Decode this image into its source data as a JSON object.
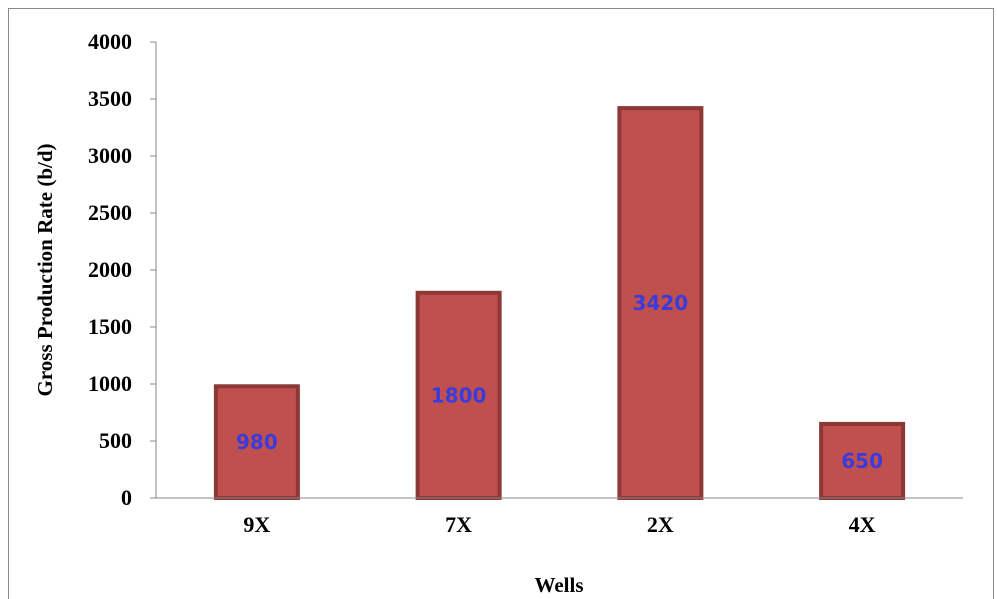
{
  "chart_data": {
    "type": "bar",
    "categories": [
      "9X",
      "7X",
      "2X",
      "4X"
    ],
    "values": [
      980,
      1800,
      3420,
      650
    ],
    "data_labels": [
      "980",
      "1800",
      "3420",
      "650"
    ],
    "xlabel": "Wells",
    "ylabel": "Gross Production Rate (b/d)",
    "ylim": [
      0,
      4000
    ],
    "yticks": [
      "0",
      "500",
      "1000",
      "1500",
      "2000",
      "2500",
      "3000",
      "3500",
      "4000"
    ],
    "grid": false,
    "legend": "none",
    "colors": {
      "bar_fill": "#c0504d",
      "bar_border": "#8c3836",
      "data_label": "#3b3bdc",
      "axis": "#8a8a8a"
    }
  }
}
